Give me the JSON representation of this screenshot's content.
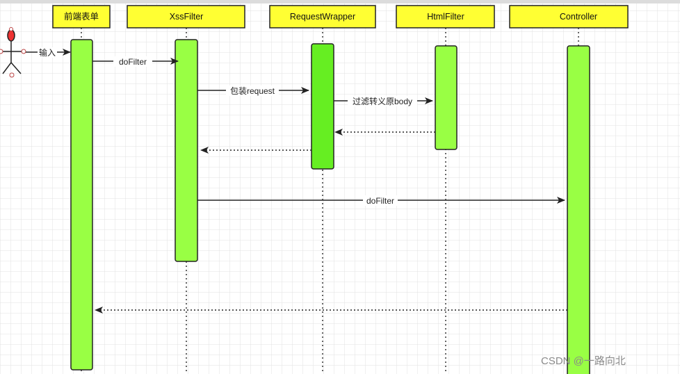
{
  "participants": [
    {
      "label": "前端表单"
    },
    {
      "label": "XssFilter"
    },
    {
      "label": "RequestWrapper"
    },
    {
      "label": "HtmlFilter"
    },
    {
      "label": "Controller"
    }
  ],
  "messages": [
    {
      "label": "输入",
      "style": "solid"
    },
    {
      "label": "doFilter",
      "style": "solid"
    },
    {
      "label": "包装request",
      "style": "solid"
    },
    {
      "label": "过滤转义原body",
      "style": "solid"
    },
    {
      "label": "",
      "style": "dashed"
    },
    {
      "label": "",
      "style": "dashed"
    },
    {
      "label": "doFilter",
      "style": "solid"
    },
    {
      "label": "",
      "style": "dashed"
    }
  ],
  "watermark": "CSDN @一路向北",
  "colors": {
    "header_fill": "#ffff33",
    "activation": "#99ff44",
    "activation_bright": "#66ee22",
    "actor_head": "#ee3333",
    "grid": "#e4e4e4"
  }
}
